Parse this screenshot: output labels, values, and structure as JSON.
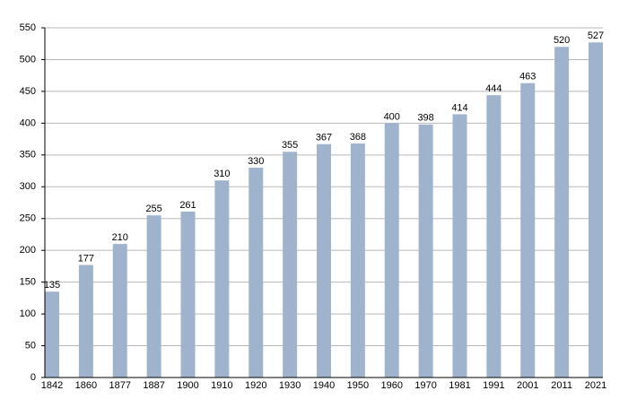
{
  "chart_data": {
    "type": "bar",
    "categories": [
      "1842",
      "1860",
      "1877",
      "1887",
      "1900",
      "1910",
      "1920",
      "1930",
      "1940",
      "1950",
      "1960",
      "1970",
      "1981",
      "1991",
      "2001",
      "2011",
      "2021"
    ],
    "values": [
      135,
      177,
      210,
      255,
      261,
      310,
      330,
      355,
      367,
      368,
      400,
      398,
      414,
      444,
      463,
      520,
      527
    ],
    "color": "#9fb4cc",
    "ylim": [
      0,
      550
    ],
    "yticks": [
      0,
      50,
      100,
      150,
      200,
      250,
      300,
      350,
      400,
      450,
      500,
      550
    ],
    "grid": true
  }
}
